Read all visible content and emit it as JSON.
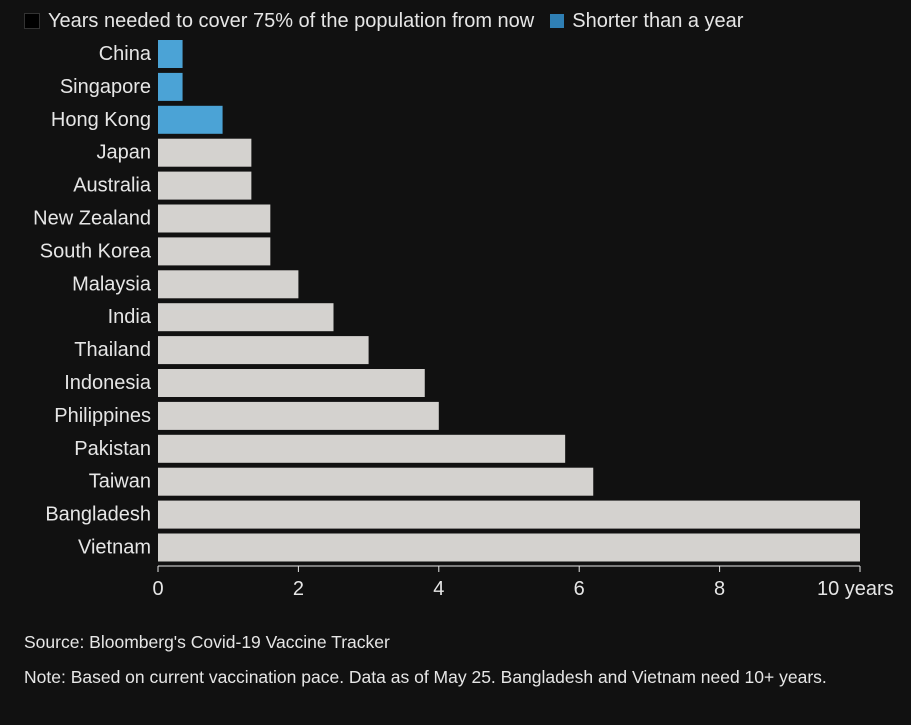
{
  "chart_data": {
    "type": "bar",
    "orientation": "horizontal",
    "legend": [
      {
        "label": "Years needed to cover 75% of the population from now",
        "color": "#111111"
      },
      {
        "label": "Shorter than a year",
        "color": "#2f7fb4"
      }
    ],
    "categories": [
      "China",
      "Singapore",
      "Hong Kong",
      "Japan",
      "Australia",
      "New Zealand",
      "South Korea",
      "Malaysia",
      "India",
      "Thailand",
      "Indonesia",
      "Philippines",
      "Pakistan",
      "Taiwan",
      "Bangladesh",
      "Vietnam"
    ],
    "values": [
      0.35,
      0.35,
      0.92,
      1.33,
      1.33,
      1.6,
      1.6,
      2.0,
      2.5,
      3.0,
      3.8,
      4.0,
      5.8,
      6.2,
      10,
      10
    ],
    "highlight_color": "#4ba3d6",
    "default_color": "#d4d2cf",
    "xlim": [
      0,
      10
    ],
    "x_ticks": [
      0,
      2,
      4,
      6,
      8,
      10
    ],
    "x_tick_labels": [
      "0",
      "2",
      "4",
      "6",
      "8",
      "10 years"
    ],
    "grid": false,
    "source": "Source: Bloomberg's Covid-19 Vaccine Tracker",
    "note": "Note: Based on current vaccination pace. Data as of May 25. Bangladesh and Vietnam need 10+ years."
  }
}
